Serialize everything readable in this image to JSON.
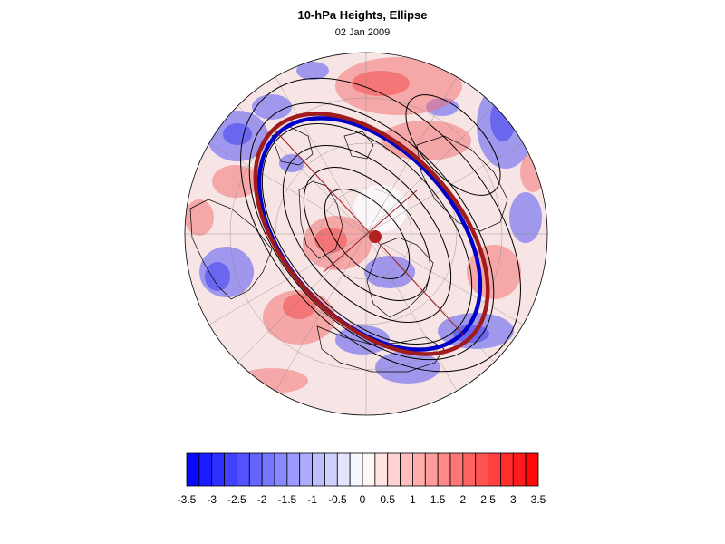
{
  "title": "10-hPa Heights, Ellipse",
  "subtitle": "02 Jan 2009",
  "colorbar": {
    "labels": [
      "-3.5",
      "-3",
      "-2.5",
      "-2",
      "-1.5",
      "-1",
      "-0.5",
      "0",
      "0.5",
      "1",
      "1.5",
      "2",
      "2.5",
      "3",
      "3.5"
    ],
    "levels": [
      -3.5,
      -3.25,
      -3,
      -2.75,
      -2.5,
      -2.25,
      -2,
      -1.75,
      -1.5,
      -1.25,
      -1,
      -0.75,
      -0.5,
      -0.25,
      0,
      0.25,
      0.5,
      0.75,
      1,
      1.25,
      1.5,
      1.75,
      2,
      2.25,
      2.5,
      2.75,
      3,
      3.25,
      3.5
    ],
    "negative_color": "#0000ff",
    "positive_color": "#ff0000"
  },
  "colors": {
    "blue_ellipse": "#0000c8",
    "red_ellipse": "#a01c1c",
    "center_marker": "#b22222",
    "contour": "#000000",
    "grid": "#888888"
  },
  "map": {
    "projection": "polar stereographic",
    "hemisphere": "north"
  }
}
